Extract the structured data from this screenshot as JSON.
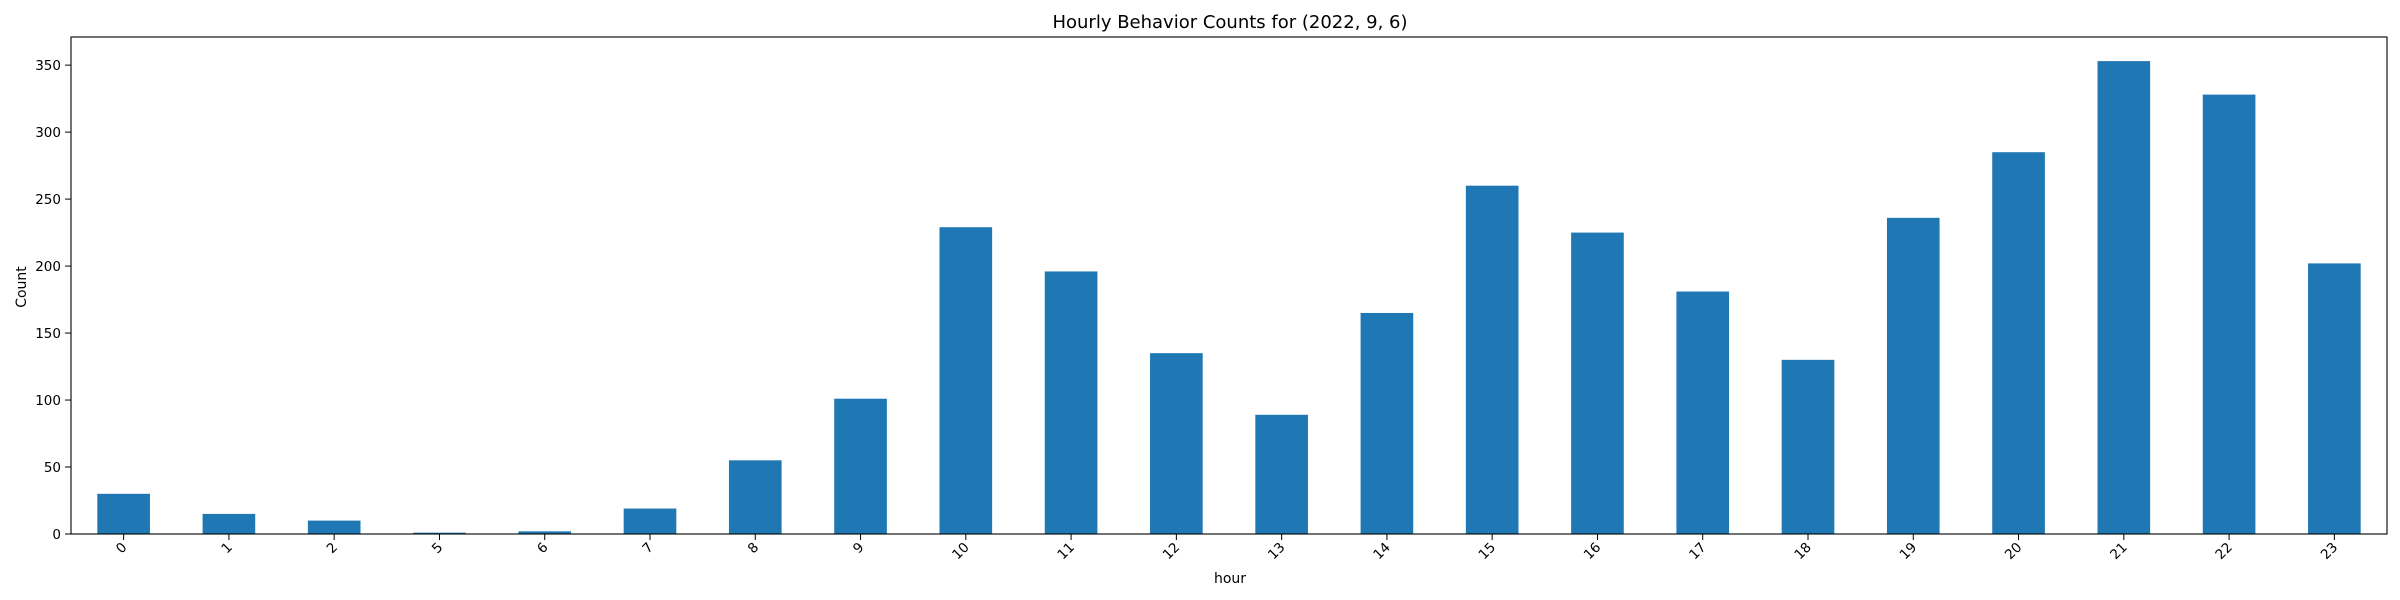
{
  "chart_data": {
    "type": "bar",
    "title": "Hourly Behavior Counts for (2022, 9, 6)",
    "xlabel": "hour",
    "ylabel": "Count",
    "categories": [
      "0",
      "1",
      "2",
      "5",
      "6",
      "7",
      "8",
      "9",
      "10",
      "11",
      "12",
      "13",
      "14",
      "15",
      "16",
      "17",
      "18",
      "19",
      "20",
      "21",
      "22",
      "23"
    ],
    "values": [
      30,
      15,
      10,
      1,
      2,
      19,
      55,
      101,
      229,
      196,
      135,
      89,
      165,
      260,
      225,
      181,
      130,
      236,
      285,
      353,
      328,
      202
    ],
    "ylim": [
      0,
      371
    ],
    "yticks": [
      0,
      50,
      100,
      150,
      200,
      250,
      300,
      350
    ],
    "xtick_rotation": 45,
    "grid": false,
    "legend": "none",
    "bar_color": "#1f77b4"
  }
}
